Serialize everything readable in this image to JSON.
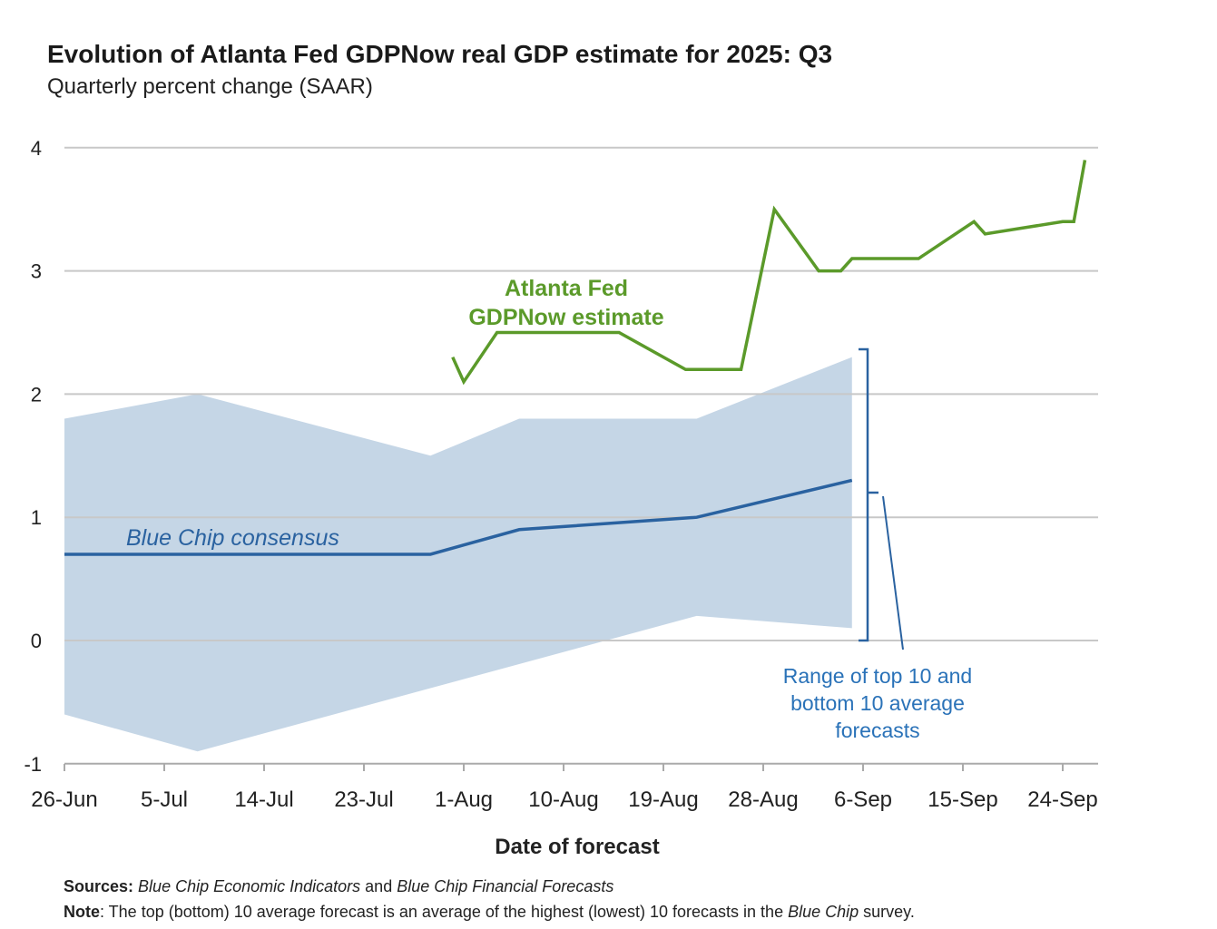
{
  "chart_data": {
    "type": "line",
    "title": "Evolution of Atlanta Fed GDPNow real GDP estimate for 2025: Q3",
    "subtitle": "Quarterly percent change (SAAR)",
    "xlabel": "Date of forecast",
    "ylabel": "",
    "ylim": [
      -1,
      4
    ],
    "yticks": [
      "4",
      "3",
      "2",
      "1",
      "0",
      "-1"
    ],
    "ytick_values": [
      4,
      3,
      2,
      1,
      0,
      -1
    ],
    "x_start": "2025-06-26",
    "xticks": [
      "26-Jun",
      "5-Jul",
      "14-Jul",
      "23-Jul",
      "1-Aug",
      "10-Aug",
      "19-Aug",
      "28-Aug",
      "6-Sep",
      "15-Sep",
      "24-Sep"
    ],
    "grid": true,
    "series": [
      {
        "name": "Atlanta Fed GDPNow estimate",
        "label_lines": [
          "Atlanta Fed",
          "GDPNow estimate"
        ],
        "color": "#5b9a2a",
        "x": [
          "2025-07-31",
          "2025-08-01",
          "2025-08-04",
          "2025-08-15",
          "2025-08-21",
          "2025-08-26",
          "2025-08-29",
          "2025-09-02",
          "2025-09-04",
          "2025-09-05",
          "2025-09-11",
          "2025-09-16",
          "2025-09-17",
          "2025-09-24",
          "2025-09-25",
          "2025-09-26"
        ],
        "values": [
          2.3,
          2.1,
          2.5,
          2.5,
          2.2,
          2.2,
          3.5,
          3.0,
          3.0,
          3.1,
          3.1,
          3.4,
          3.3,
          3.4,
          3.4,
          3.9
        ]
      },
      {
        "name": "Blue Chip consensus",
        "color": "#2a62a0",
        "x": [
          "2025-06-26",
          "2025-07-29",
          "2025-08-06",
          "2025-08-22",
          "2025-09-05"
        ],
        "values": [
          0.7,
          0.7,
          0.9,
          1.0,
          1.3
        ]
      }
    ],
    "range_band": {
      "name": "Range of top 10 and bottom 10 average forecasts",
      "label_lines": [
        "Range of top 10 and",
        "bottom 10 average",
        "forecasts"
      ],
      "color": "#c5d6e6",
      "upper": {
        "x": [
          "2025-06-26",
          "2025-07-08",
          "2025-07-29",
          "2025-08-06",
          "2025-08-22",
          "2025-09-05"
        ],
        "values": [
          1.8,
          2.0,
          1.5,
          1.8,
          1.8,
          2.3
        ]
      },
      "lower": {
        "x": [
          "2025-06-26",
          "2025-07-08",
          "2025-08-22",
          "2025-09-05"
        ],
        "values": [
          -0.6,
          -0.9,
          0.2,
          0.1
        ]
      }
    }
  },
  "footer": {
    "sources_label": "Sources:",
    "sources_1": "Blue Chip Economic Indicators",
    "sources_and": " and ",
    "sources_2": "Blue Chip Financial Forecasts",
    "note_label": "Note",
    "note_text": ": The top (bottom) 10 average forecast is an average of the highest (lowest) 10 forecasts in the ",
    "note_italic": "Blue Chip",
    "note_end": " survey."
  }
}
